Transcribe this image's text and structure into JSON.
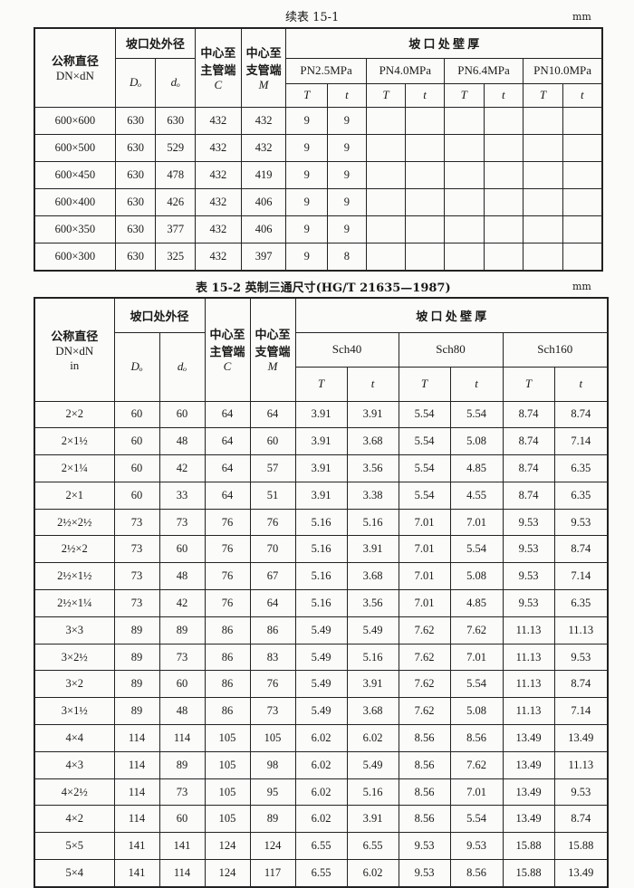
{
  "table1": {
    "caption": "续表 15-1",
    "unit": "mm",
    "headers": {
      "nominal": "公称直径",
      "nominal_sub": "DN×dN",
      "od": "坡口处外径",
      "Do": "Dₒ",
      "do": "dₒ",
      "c1": "中心至",
      "c2": "主管端",
      "c_sym": "C",
      "m1": "中心至",
      "m2": "支管端",
      "m_sym": "M",
      "wall": "坡 口 处 壁 厚",
      "groups": [
        "PN2.5MPa",
        "PN4.0MPa",
        "PN6.4MPa",
        "PN10.0MPa"
      ],
      "T": "T",
      "t": "t"
    },
    "rows": [
      [
        "600×600",
        "630",
        "630",
        "432",
        "432",
        "9",
        "9",
        "",
        "",
        "",
        "",
        "",
        ""
      ],
      [
        "600×500",
        "630",
        "529",
        "432",
        "432",
        "9",
        "9",
        "",
        "",
        "",
        "",
        "",
        ""
      ],
      [
        "600×450",
        "630",
        "478",
        "432",
        "419",
        "9",
        "9",
        "",
        "",
        "",
        "",
        "",
        ""
      ],
      [
        "600×400",
        "630",
        "426",
        "432",
        "406",
        "9",
        "9",
        "",
        "",
        "",
        "",
        "",
        ""
      ],
      [
        "600×350",
        "630",
        "377",
        "432",
        "406",
        "9",
        "9",
        "",
        "",
        "",
        "",
        "",
        ""
      ],
      [
        "600×300",
        "630",
        "325",
        "432",
        "397",
        "9",
        "8",
        "",
        "",
        "",
        "",
        "",
        ""
      ]
    ]
  },
  "table2": {
    "caption": "表 15-2  英制三通尺寸(HG/T 21635—1987)",
    "unit": "mm",
    "headers": {
      "nominal": "公称直径",
      "nominal_sub": "DN×dN",
      "nominal_unit": "in",
      "od": "坡口处外径",
      "Do": "Dₒ",
      "do": "dₒ",
      "c1": "中心至",
      "c2": "主管端",
      "c_sym": "C",
      "m1": "中心至",
      "m2": "支管端",
      "m_sym": "M",
      "wall": "坡 口 处 壁 厚",
      "groups": [
        "Sch40",
        "Sch80",
        "Sch160"
      ],
      "T": "T",
      "t": "t"
    },
    "rows": [
      [
        "2×2",
        "60",
        "60",
        "64",
        "64",
        "3.91",
        "3.91",
        "5.54",
        "5.54",
        "8.74",
        "8.74"
      ],
      [
        "2×1½",
        "60",
        "48",
        "64",
        "60",
        "3.91",
        "3.68",
        "5.54",
        "5.08",
        "8.74",
        "7.14"
      ],
      [
        "2×1¼",
        "60",
        "42",
        "64",
        "57",
        "3.91",
        "3.56",
        "5.54",
        "4.85",
        "8.74",
        "6.35"
      ],
      [
        "2×1",
        "60",
        "33",
        "64",
        "51",
        "3.91",
        "3.38",
        "5.54",
        "4.55",
        "8.74",
        "6.35"
      ],
      [
        "2½×2½",
        "73",
        "73",
        "76",
        "76",
        "5.16",
        "5.16",
        "7.01",
        "7.01",
        "9.53",
        "9.53"
      ],
      [
        "2½×2",
        "73",
        "60",
        "76",
        "70",
        "5.16",
        "3.91",
        "7.01",
        "5.54",
        "9.53",
        "8.74"
      ],
      [
        "2½×1½",
        "73",
        "48",
        "76",
        "67",
        "5.16",
        "3.68",
        "7.01",
        "5.08",
        "9.53",
        "7.14"
      ],
      [
        "2½×1¼",
        "73",
        "42",
        "76",
        "64",
        "5.16",
        "3.56",
        "7.01",
        "4.85",
        "9.53",
        "6.35"
      ],
      [
        "3×3",
        "89",
        "89",
        "86",
        "86",
        "5.49",
        "5.49",
        "7.62",
        "7.62",
        "11.13",
        "11.13"
      ],
      [
        "3×2½",
        "89",
        "73",
        "86",
        "83",
        "5.49",
        "5.16",
        "7.62",
        "7.01",
        "11.13",
        "9.53"
      ],
      [
        "3×2",
        "89",
        "60",
        "86",
        "76",
        "5.49",
        "3.91",
        "7.62",
        "5.54",
        "11.13",
        "8.74"
      ],
      [
        "3×1½",
        "89",
        "48",
        "86",
        "73",
        "5.49",
        "3.68",
        "7.62",
        "5.08",
        "11.13",
        "7.14"
      ],
      [
        "4×4",
        "114",
        "114",
        "105",
        "105",
        "6.02",
        "6.02",
        "8.56",
        "8.56",
        "13.49",
        "13.49"
      ],
      [
        "4×3",
        "114",
        "89",
        "105",
        "98",
        "6.02",
        "5.49",
        "8.56",
        "7.62",
        "13.49",
        "11.13"
      ],
      [
        "4×2½",
        "114",
        "73",
        "105",
        "95",
        "6.02",
        "5.16",
        "8.56",
        "7.01",
        "13.49",
        "9.53"
      ],
      [
        "4×2",
        "114",
        "60",
        "105",
        "89",
        "6.02",
        "3.91",
        "8.56",
        "5.54",
        "13.49",
        "8.74"
      ],
      [
        "5×5",
        "141",
        "141",
        "124",
        "124",
        "6.55",
        "6.55",
        "9.53",
        "9.53",
        "15.88",
        "15.88"
      ],
      [
        "5×4",
        "141",
        "114",
        "124",
        "117",
        "6.55",
        "6.02",
        "9.53",
        "8.56",
        "15.88",
        "13.49"
      ]
    ]
  }
}
